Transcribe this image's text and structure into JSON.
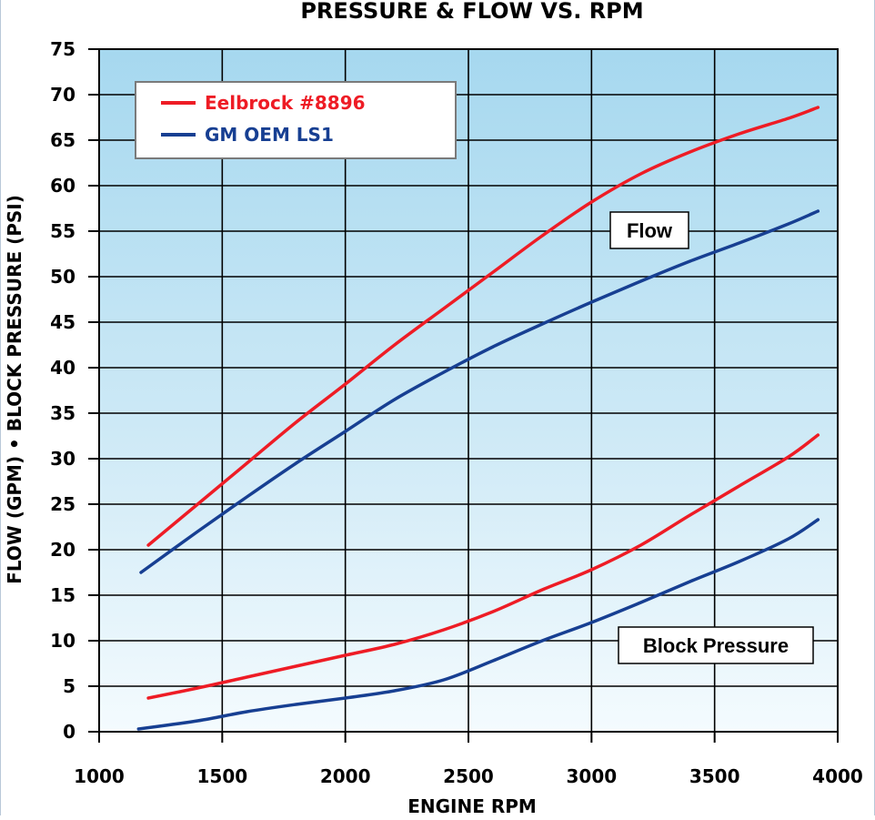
{
  "chart_data": {
    "type": "line",
    "title": "PRESSURE & FLOW VS. RPM",
    "xlabel": "ENGINE RPM",
    "ylabel": "FLOW (GPM) • BLOCK PRESSURE (PSI)",
    "xlim": [
      1000,
      4000
    ],
    "ylim": [
      0,
      75
    ],
    "xticks": [
      "1000",
      "1500",
      "2000",
      "2500",
      "3000",
      "3500",
      "4000"
    ],
    "yticks": [
      "0",
      "5",
      "10",
      "15",
      "20",
      "25",
      "30",
      "35",
      "40",
      "45",
      "50",
      "55",
      "60",
      "65",
      "70",
      "75"
    ],
    "grid": true,
    "legend_position": "top-left",
    "legend": [
      {
        "label": "Eelbrock #8896",
        "color": "#ee1c25"
      },
      {
        "label": "GM OEM LS1",
        "color": "#173f92"
      }
    ],
    "annotations": [
      {
        "text": "Flow",
        "x": 3130,
        "y": 55
      },
      {
        "text": "Block Pressure",
        "x": 3240,
        "y": 9.4
      }
    ],
    "series": [
      {
        "group": "Flow",
        "legend_index": 0,
        "color": "#ee1c25",
        "points": [
          [
            1200,
            20.5
          ],
          [
            1400,
            25
          ],
          [
            1600,
            29.5
          ],
          [
            1800,
            34
          ],
          [
            2000,
            38.2
          ],
          [
            2200,
            42.5
          ],
          [
            2400,
            46.5
          ],
          [
            2600,
            50.5
          ],
          [
            2800,
            54.5
          ],
          [
            3000,
            58.2
          ],
          [
            3200,
            61.3
          ],
          [
            3400,
            63.7
          ],
          [
            3600,
            65.7
          ],
          [
            3800,
            67.4
          ],
          [
            3920,
            68.6
          ]
        ]
      },
      {
        "group": "Flow",
        "legend_index": 1,
        "color": "#173f92",
        "points": [
          [
            1170,
            17.5
          ],
          [
            1400,
            22
          ],
          [
            1600,
            25.8
          ],
          [
            1800,
            29.5
          ],
          [
            2000,
            33
          ],
          [
            2200,
            36.5
          ],
          [
            2400,
            39.5
          ],
          [
            2600,
            42.3
          ],
          [
            2800,
            44.8
          ],
          [
            3000,
            47.2
          ],
          [
            3200,
            49.5
          ],
          [
            3400,
            51.7
          ],
          [
            3600,
            53.7
          ],
          [
            3800,
            55.8
          ],
          [
            3920,
            57.2
          ]
        ]
      },
      {
        "group": "Block Pressure",
        "legend_index": 0,
        "color": "#ee1c25",
        "points": [
          [
            1200,
            3.7
          ],
          [
            1400,
            4.8
          ],
          [
            1600,
            6
          ],
          [
            1800,
            7.2
          ],
          [
            2000,
            8.4
          ],
          [
            2200,
            9.6
          ],
          [
            2400,
            11.2
          ],
          [
            2600,
            13.2
          ],
          [
            2800,
            15.6
          ],
          [
            3000,
            17.8
          ],
          [
            3200,
            20.5
          ],
          [
            3400,
            23.8
          ],
          [
            3600,
            27
          ],
          [
            3800,
            30.2
          ],
          [
            3920,
            32.6
          ]
        ]
      },
      {
        "group": "Block Pressure",
        "legend_index": 1,
        "color": "#173f92",
        "points": [
          [
            1160,
            0.3
          ],
          [
            1400,
            1.2
          ],
          [
            1600,
            2.2
          ],
          [
            1800,
            3
          ],
          [
            2000,
            3.7
          ],
          [
            2200,
            4.5
          ],
          [
            2400,
            5.7
          ],
          [
            2600,
            7.8
          ],
          [
            2800,
            10
          ],
          [
            3000,
            12
          ],
          [
            3200,
            14.2
          ],
          [
            3400,
            16.5
          ],
          [
            3600,
            18.7
          ],
          [
            3800,
            21.2
          ],
          [
            3920,
            23.3
          ]
        ]
      }
    ]
  }
}
